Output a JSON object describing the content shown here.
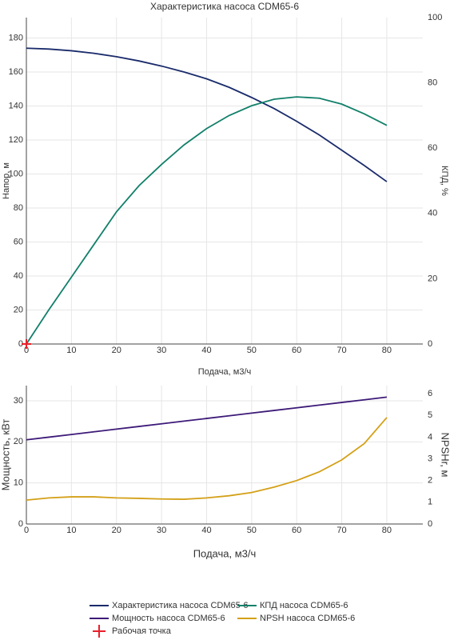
{
  "chart_data": [
    {
      "type": "line",
      "title": "Характеристика насоса CDM65-6",
      "x_label": "Подача, м3/ч",
      "y_label": "Напор, м",
      "y2_label": "КПД, %",
      "x": [
        0,
        5,
        10,
        15,
        20,
        25,
        30,
        35,
        40,
        45,
        50,
        55,
        60,
        65,
        70,
        75,
        80
      ],
      "xlim": [
        0,
        88
      ],
      "xticks": [
        0,
        10,
        20,
        30,
        40,
        50,
        60,
        70,
        80
      ],
      "ylim": [
        0,
        192
      ],
      "yticks": [
        0,
        20,
        40,
        60,
        80,
        100,
        120,
        140,
        160,
        180
      ],
      "y2lim": [
        0,
        100
      ],
      "y2ticks": [
        0,
        20,
        40,
        60,
        80,
        100
      ],
      "grid": true,
      "series": [
        {
          "name": "Характеристика насоса CDM65-6",
          "color": "#1a2b6b",
          "values": [
            174,
            173.5,
            172.5,
            171,
            169,
            166.5,
            163.5,
            160,
            156,
            151,
            145,
            138.5,
            131,
            123,
            114,
            105,
            95.5
          ]
        },
        {
          "name": "КПД насоса CDM65-6",
          "color": "#11806a",
          "axis": "y2",
          "values": [
            0,
            10.5,
            20.5,
            30.5,
            40.5,
            48.5,
            55,
            61,
            66,
            70,
            73,
            75,
            75.7,
            75.3,
            73.5,
            70.5,
            67
          ]
        },
        {
          "name": "Рабочая точка",
          "color": "#e8202a",
          "marker": "cross",
          "x": [
            0
          ],
          "values": [
            0
          ]
        }
      ]
    },
    {
      "type": "line",
      "x_label": "Подача, м3/ч",
      "y_label": "Мощность, кВт",
      "y2_label": "NPSHr, м",
      "x": [
        0,
        5,
        10,
        15,
        20,
        25,
        30,
        35,
        40,
        45,
        50,
        55,
        60,
        65,
        70,
        75,
        80
      ],
      "xlim": [
        0,
        88
      ],
      "xticks": [
        0,
        10,
        20,
        30,
        40,
        50,
        60,
        70,
        80
      ],
      "ylim": [
        0,
        33.7
      ],
      "yticks": [
        0,
        10,
        20,
        30
      ],
      "y2lim": [
        0,
        6.37
      ],
      "y2ticks": [
        0,
        1,
        2,
        3,
        4,
        5,
        6
      ],
      "grid": true,
      "series": [
        {
          "name": "Мощность насоса CDM65-6",
          "color": "#3d1a78",
          "values": [
            20.5,
            21.15,
            21.8,
            22.45,
            23.1,
            23.75,
            24.4,
            25.05,
            25.7,
            26.35,
            27.0,
            27.65,
            28.3,
            28.95,
            29.6,
            30.25,
            30.9
          ]
        },
        {
          "name": "NPSH насоса CDM65-6",
          "color": "#d4a017",
          "axis": "y2",
          "values": [
            1.1,
            1.2,
            1.25,
            1.25,
            1.2,
            1.18,
            1.15,
            1.14,
            1.2,
            1.3,
            1.45,
            1.7,
            2.0,
            2.4,
            2.95,
            3.7,
            4.9
          ]
        }
      ]
    }
  ]
}
